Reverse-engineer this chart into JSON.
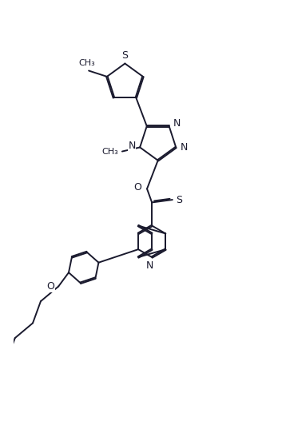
{
  "bg_color": "#ffffff",
  "line_color": "#1a1a2e",
  "lw": 1.4,
  "dbo": 0.035,
  "figsize": [
    3.53,
    5.27
  ],
  "dpi": 100,
  "xlim": [
    0.0,
    7.0
  ],
  "ylim": [
    -6.5,
    5.0
  ]
}
